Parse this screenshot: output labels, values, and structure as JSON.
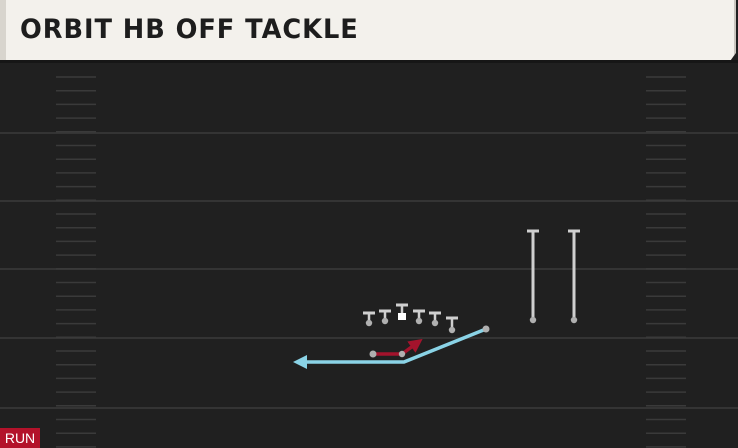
{
  "play": {
    "name": "ORBIT HB OFF TACKLE",
    "type": "RUN"
  },
  "colors": {
    "field": "#202020",
    "yard_line": "#343434",
    "hash_mark": "#3a3a3a",
    "player": "#cfcfcf",
    "center": "#ffffff",
    "block_route": "#a3132c",
    "run_path": "#8ad3e6",
    "badge": "#b3122a"
  },
  "icons": {
    "lineman": "t-marker-icon",
    "center": "square-marker-icon",
    "receiver": "receiver-route-icon",
    "ball_carrier": "ball-carrier-icon"
  }
}
